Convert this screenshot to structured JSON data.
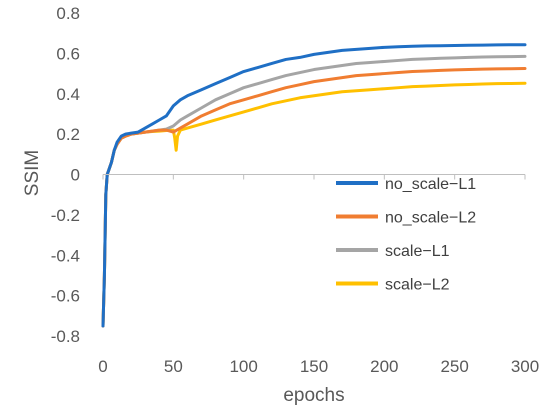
{
  "chart_data": {
    "type": "line",
    "xlabel": "epochs",
    "ylabel": "SSIM",
    "xlim": [
      0,
      300
    ],
    "ylim": [
      -0.8,
      0.8
    ],
    "x_ticks": [
      0,
      50,
      100,
      150,
      200,
      250,
      300
    ],
    "y_ticks": [
      -0.8,
      -0.6,
      -0.4,
      -0.2,
      0,
      0.2,
      0.4,
      0.6,
      0.8
    ],
    "x_tick_labels": [
      "0",
      "50",
      "100",
      "150",
      "200",
      "250",
      "300"
    ],
    "y_tick_labels": [
      "-0.8",
      "-0.6",
      "-0.4",
      "-0.2",
      "0",
      "0.2",
      "0.4",
      "0.6",
      "0.8"
    ],
    "grid": false,
    "legend_position": "center-right",
    "series": [
      {
        "name": "no_scale−L1",
        "color": "#1f6fc5",
        "x": [
          0,
          1,
          2,
          3,
          4,
          6,
          8,
          10,
          13,
          16,
          20,
          25,
          30,
          35,
          40,
          45,
          50,
          55,
          60,
          70,
          80,
          90,
          100,
          110,
          120,
          130,
          140,
          150,
          160,
          170,
          180,
          190,
          200,
          210,
          220,
          230,
          240,
          250,
          260,
          270,
          280,
          290,
          300
        ],
        "y": [
          -0.75,
          -0.5,
          -0.1,
          0.0,
          0.02,
          0.06,
          0.12,
          0.16,
          0.19,
          0.2,
          0.205,
          0.21,
          0.23,
          0.25,
          0.27,
          0.29,
          0.34,
          0.37,
          0.39,
          0.42,
          0.45,
          0.48,
          0.51,
          0.53,
          0.55,
          0.57,
          0.58,
          0.595,
          0.605,
          0.615,
          0.62,
          0.625,
          0.63,
          0.633,
          0.635,
          0.637,
          0.638,
          0.639,
          0.64,
          0.641,
          0.642,
          0.643,
          0.643
        ]
      },
      {
        "name": "no_scale−L2",
        "color": "#f07d31",
        "x": [
          0,
          1,
          2,
          3,
          4,
          6,
          8,
          10,
          13,
          16,
          20,
          25,
          30,
          35,
          40,
          45,
          50,
          55,
          60,
          70,
          80,
          90,
          100,
          110,
          120,
          130,
          140,
          150,
          160,
          170,
          180,
          190,
          200,
          210,
          220,
          230,
          240,
          250,
          260,
          270,
          280,
          290,
          300
        ],
        "y": [
          -0.75,
          -0.5,
          -0.1,
          0.0,
          0.02,
          0.06,
          0.12,
          0.15,
          0.18,
          0.19,
          0.2,
          0.205,
          0.21,
          0.215,
          0.22,
          0.22,
          0.21,
          0.23,
          0.25,
          0.29,
          0.32,
          0.35,
          0.37,
          0.39,
          0.41,
          0.43,
          0.445,
          0.46,
          0.47,
          0.48,
          0.49,
          0.495,
          0.5,
          0.505,
          0.51,
          0.513,
          0.516,
          0.518,
          0.52,
          0.522,
          0.523,
          0.524,
          0.525
        ]
      },
      {
        "name": "scale−L1",
        "color": "#a5a5a5",
        "x": [
          0,
          1,
          2,
          3,
          4,
          6,
          8,
          10,
          13,
          16,
          20,
          25,
          30,
          35,
          40,
          45,
          50,
          55,
          60,
          70,
          80,
          90,
          100,
          110,
          120,
          130,
          140,
          150,
          160,
          170,
          180,
          190,
          200,
          210,
          220,
          230,
          240,
          250,
          260,
          270,
          280,
          290,
          300
        ],
        "y": [
          -0.75,
          -0.5,
          -0.1,
          0.0,
          0.02,
          0.06,
          0.12,
          0.15,
          0.18,
          0.19,
          0.2,
          0.205,
          0.21,
          0.215,
          0.22,
          0.225,
          0.24,
          0.27,
          0.29,
          0.33,
          0.37,
          0.4,
          0.43,
          0.45,
          0.47,
          0.49,
          0.505,
          0.52,
          0.53,
          0.54,
          0.55,
          0.555,
          0.56,
          0.565,
          0.57,
          0.573,
          0.576,
          0.578,
          0.58,
          0.582,
          0.583,
          0.584,
          0.585
        ]
      },
      {
        "name": "scale−L2",
        "color": "#ffc000",
        "x": [
          0,
          1,
          2,
          3,
          4,
          6,
          8,
          10,
          13,
          16,
          20,
          25,
          30,
          35,
          40,
          45,
          50,
          51,
          52,
          53,
          55,
          60,
          70,
          80,
          90,
          100,
          110,
          120,
          130,
          140,
          150,
          160,
          170,
          180,
          190,
          200,
          210,
          220,
          230,
          240,
          250,
          260,
          270,
          280,
          290,
          300
        ],
        "y": [
          -0.75,
          -0.5,
          -0.1,
          0.0,
          0.02,
          0.06,
          0.12,
          0.15,
          0.18,
          0.19,
          0.2,
          0.205,
          0.21,
          0.213,
          0.215,
          0.218,
          0.22,
          0.18,
          0.12,
          0.19,
          0.22,
          0.23,
          0.25,
          0.27,
          0.29,
          0.31,
          0.33,
          0.35,
          0.365,
          0.38,
          0.39,
          0.4,
          0.41,
          0.415,
          0.42,
          0.425,
          0.43,
          0.435,
          0.438,
          0.441,
          0.444,
          0.446,
          0.448,
          0.45,
          0.451,
          0.452
        ]
      }
    ]
  }
}
